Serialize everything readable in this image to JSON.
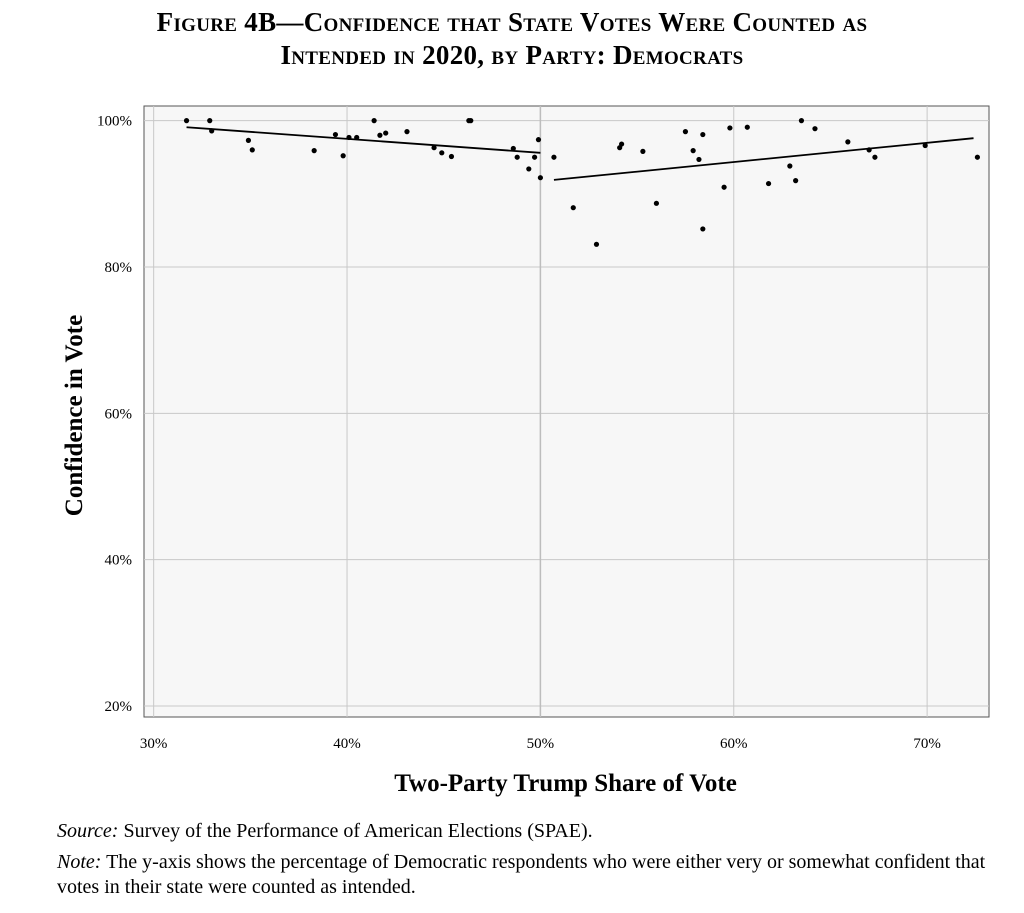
{
  "figure": {
    "title_line1": "Figure 4B—Confidence that State Votes Were Counted as",
    "title_line2": "Intended in 2020, by Party: Democrats"
  },
  "notes": {
    "source_label": "Source:",
    "source_text": "Survey of the Performance of American Elections (SPAE).",
    "note_label": "Note:",
    "note_text": "The y-axis shows the percentage of Democratic respondents who were either very or somewhat confident that votes in their state were counted as intended."
  },
  "chart_data": {
    "type": "scatter",
    "title": "Figure 4B—Confidence that State Votes Were Counted as Intended in 2020, by Party: Democrats",
    "xlabel": "Two-Party Trump Share of Vote",
    "ylabel": "Confidence in Vote",
    "xlim": [
      29.5,
      73.2
    ],
    "ylim": [
      18.5,
      102.0
    ],
    "x_ticks": [
      30,
      40,
      50,
      60,
      70
    ],
    "x_tick_labels": [
      "30%",
      "40%",
      "50%",
      "60%",
      "70%"
    ],
    "y_ticks": [
      20,
      40,
      60,
      80,
      100
    ],
    "y_tick_labels": [
      "20%",
      "40%",
      "60%",
      "80%",
      "100%"
    ],
    "grid": true,
    "vertical_reference_line": 50,
    "points": [
      {
        "x": 31.7,
        "y": 100.0
      },
      {
        "x": 32.9,
        "y": 100.0
      },
      {
        "x": 33.0,
        "y": 98.6
      },
      {
        "x": 34.9,
        "y": 97.3
      },
      {
        "x": 35.1,
        "y": 96.0
      },
      {
        "x": 38.3,
        "y": 95.9
      },
      {
        "x": 39.4,
        "y": 98.1
      },
      {
        "x": 39.8,
        "y": 95.2
      },
      {
        "x": 40.1,
        "y": 97.7
      },
      {
        "x": 40.5,
        "y": 97.7
      },
      {
        "x": 41.4,
        "y": 100.0
      },
      {
        "x": 41.7,
        "y": 98.0
      },
      {
        "x": 42.0,
        "y": 98.3
      },
      {
        "x": 43.1,
        "y": 98.5
      },
      {
        "x": 44.5,
        "y": 96.3
      },
      {
        "x": 44.9,
        "y": 95.6
      },
      {
        "x": 45.4,
        "y": 95.1
      },
      {
        "x": 46.3,
        "y": 100.0
      },
      {
        "x": 46.4,
        "y": 100.0
      },
      {
        "x": 48.6,
        "y": 96.2
      },
      {
        "x": 48.8,
        "y": 95.0
      },
      {
        "x": 49.4,
        "y": 93.4
      },
      {
        "x": 49.7,
        "y": 95.0
      },
      {
        "x": 49.9,
        "y": 97.4
      },
      {
        "x": 50.0,
        "y": 92.2
      },
      {
        "x": 50.7,
        "y": 95.0
      },
      {
        "x": 51.7,
        "y": 88.1
      },
      {
        "x": 52.9,
        "y": 83.1
      },
      {
        "x": 54.1,
        "y": 96.3
      },
      {
        "x": 54.2,
        "y": 96.8
      },
      {
        "x": 55.3,
        "y": 95.8
      },
      {
        "x": 56.0,
        "y": 88.7
      },
      {
        "x": 57.5,
        "y": 98.5
      },
      {
        "x": 57.9,
        "y": 95.9
      },
      {
        "x": 58.2,
        "y": 94.7
      },
      {
        "x": 58.4,
        "y": 98.1
      },
      {
        "x": 58.4,
        "y": 85.2
      },
      {
        "x": 59.5,
        "y": 90.9
      },
      {
        "x": 59.8,
        "y": 99.0
      },
      {
        "x": 60.7,
        "y": 99.1
      },
      {
        "x": 61.8,
        "y": 91.4
      },
      {
        "x": 62.9,
        "y": 93.8
      },
      {
        "x": 63.2,
        "y": 91.8
      },
      {
        "x": 63.5,
        "y": 100.0
      },
      {
        "x": 64.2,
        "y": 98.9
      },
      {
        "x": 65.9,
        "y": 97.1
      },
      {
        "x": 67.0,
        "y": 96.0
      },
      {
        "x": 67.3,
        "y": 95.0
      },
      {
        "x": 69.9,
        "y": 96.6
      },
      {
        "x": 72.6,
        "y": 95.0
      }
    ],
    "fit_lines": [
      {
        "x": [
          31.7,
          50.0
        ],
        "y": [
          99.1,
          95.6
        ]
      },
      {
        "x": [
          50.7,
          72.4
        ],
        "y": [
          91.9,
          97.6
        ]
      }
    ]
  }
}
